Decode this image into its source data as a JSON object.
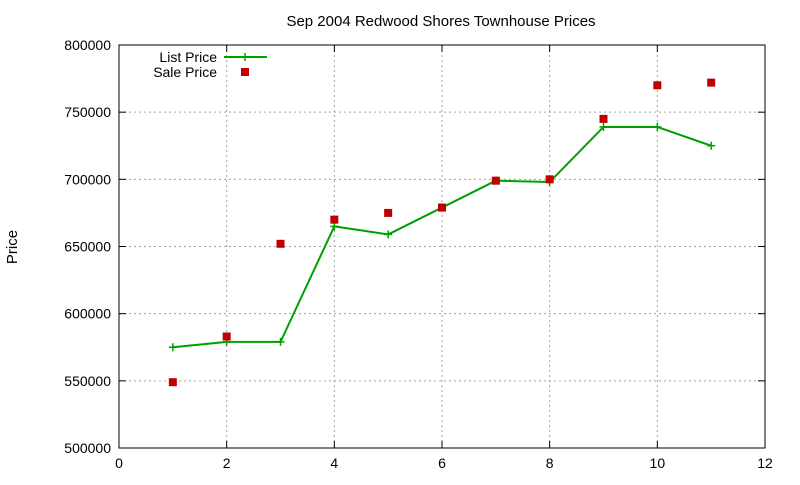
{
  "chart_data": {
    "type": "line",
    "title": "Sep 2004 Redwood Shores Townhouse Prices",
    "xlabel": "",
    "ylabel": "Price",
    "xlim": [
      0,
      12
    ],
    "ylim": [
      500000,
      800000
    ],
    "xticks": [
      0,
      2,
      4,
      6,
      8,
      10,
      12
    ],
    "yticks": [
      500000,
      550000,
      600000,
      650000,
      700000,
      750000,
      800000
    ],
    "grid": true,
    "legend_position": "top-left",
    "series": [
      {
        "name": "List Price",
        "style": "line+cross",
        "color": "#00a000",
        "x": [
          1,
          2,
          3,
          4,
          5,
          6,
          7,
          8,
          9,
          10,
          11
        ],
        "y": [
          575000,
          579000,
          579000,
          665000,
          659000,
          679000,
          699000,
          698000,
          739000,
          739000,
          725000
        ]
      },
      {
        "name": "Sale Price",
        "style": "square",
        "color": "#c00000",
        "x": [
          1,
          2,
          3,
          4,
          5,
          6,
          7,
          8,
          9,
          10,
          11
        ],
        "y": [
          549000,
          583000,
          652000,
          670000,
          675000,
          679000,
          699000,
          700000,
          745000,
          770000,
          772000
        ]
      }
    ]
  }
}
